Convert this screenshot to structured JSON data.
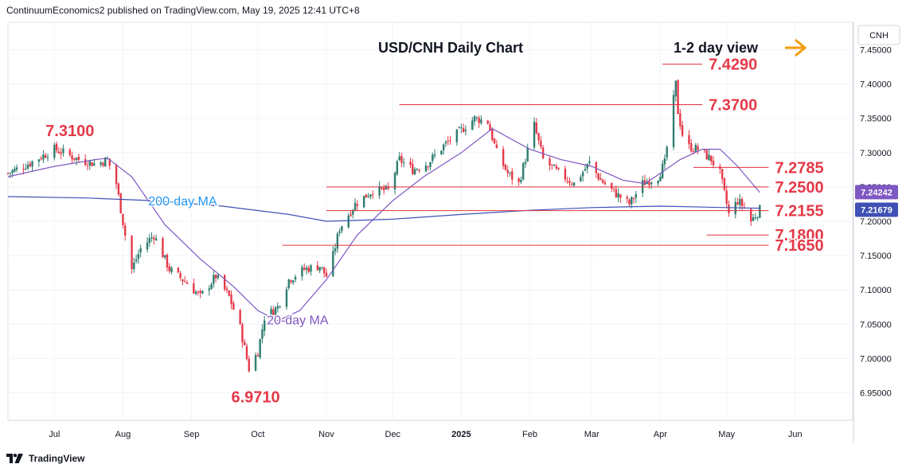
{
  "header": {
    "publisher_line": "ContinuumEconomics2 published on TradingView.com, May 19, 2025 12:41 UTC+8"
  },
  "footer": {
    "brand": "TradingView"
  },
  "chart_data": {
    "type": "candlestick",
    "title": "USD/CNH Daily Chart",
    "subtitle": "1-2 day view",
    "symbol_label": "CNH",
    "y_range": [
      6.91,
      7.49
    ],
    "y_ticks": [
      "7.45000",
      "7.40000",
      "7.35000",
      "7.30000",
      "7.25000",
      "7.20000",
      "7.15000",
      "7.10000",
      "7.05000",
      "7.00000",
      "6.95000"
    ],
    "x_ticks": [
      {
        "label": "Jul",
        "date": "2024-07-01"
      },
      {
        "label": "Aug",
        "date": "2024-08-01"
      },
      {
        "label": "Sep",
        "date": "2024-09-01"
      },
      {
        "label": "Oct",
        "date": "2024-10-01"
      },
      {
        "label": "Nov",
        "date": "2024-11-01"
      },
      {
        "label": "Dec",
        "date": "2024-12-01"
      },
      {
        "label": "2025",
        "date": "2025-01-01"
      },
      {
        "label": "Feb",
        "date": "2025-02-01"
      },
      {
        "label": "Mar",
        "date": "2025-03-01"
      },
      {
        "label": "Apr",
        "date": "2025-04-01"
      },
      {
        "label": "May",
        "date": "2025-05-01"
      },
      {
        "label": "Jun",
        "date": "2025-06-01"
      }
    ],
    "price_path": [
      [
        "2024-06-10",
        7.27
      ],
      [
        "2024-06-20",
        7.285
      ],
      [
        "2024-07-01",
        7.305
      ],
      [
        "2024-07-05",
        7.3
      ],
      [
        "2024-07-12",
        7.29
      ],
      [
        "2024-07-20",
        7.283
      ],
      [
        "2024-07-25",
        7.29
      ],
      [
        "2024-07-29",
        7.255
      ],
      [
        "2024-08-02",
        7.18
      ],
      [
        "2024-08-05",
        7.13
      ],
      [
        "2024-08-09",
        7.16
      ],
      [
        "2024-08-15",
        7.18
      ],
      [
        "2024-08-22",
        7.13
      ],
      [
        "2024-08-30",
        7.11
      ],
      [
        "2024-09-05",
        7.09
      ],
      [
        "2024-09-12",
        7.12
      ],
      [
        "2024-09-18",
        7.09
      ],
      [
        "2024-09-23",
        7.045
      ],
      [
        "2024-09-26",
        7.0
      ],
      [
        "2024-09-27",
        6.985
      ],
      [
        "2024-10-01",
        7.01
      ],
      [
        "2024-10-04",
        7.06
      ],
      [
        "2024-10-10",
        7.075
      ],
      [
        "2024-10-15",
        7.115
      ],
      [
        "2024-10-22",
        7.13
      ],
      [
        "2024-10-29",
        7.135
      ],
      [
        "2024-11-01",
        7.12
      ],
      [
        "2024-11-04",
        7.15
      ],
      [
        "2024-11-07",
        7.19
      ],
      [
        "2024-11-14",
        7.225
      ],
      [
        "2024-11-22",
        7.245
      ],
      [
        "2024-11-29",
        7.245
      ],
      [
        "2024-12-04",
        7.29
      ],
      [
        "2024-12-10",
        7.275
      ],
      [
        "2024-12-17",
        7.285
      ],
      [
        "2024-12-24",
        7.31
      ],
      [
        "2024-12-31",
        7.33
      ],
      [
        "2025-01-07",
        7.35
      ],
      [
        "2025-01-13",
        7.345
      ],
      [
        "2025-01-17",
        7.3
      ],
      [
        "2025-01-22",
        7.27
      ],
      [
        "2025-01-27",
        7.255
      ],
      [
        "2025-02-03",
        7.34
      ],
      [
        "2025-02-07",
        7.29
      ],
      [
        "2025-02-14",
        7.27
      ],
      [
        "2025-02-21",
        7.255
      ],
      [
        "2025-02-28",
        7.285
      ],
      [
        "2025-03-05",
        7.26
      ],
      [
        "2025-03-12",
        7.24
      ],
      [
        "2025-03-18",
        7.225
      ],
      [
        "2025-03-24",
        7.255
      ],
      [
        "2025-03-31",
        7.265
      ],
      [
        "2025-04-03",
        7.285
      ],
      [
        "2025-04-08",
        7.4
      ],
      [
        "2025-04-09",
        7.36
      ],
      [
        "2025-04-12",
        7.31
      ],
      [
        "2025-04-18",
        7.305
      ],
      [
        "2025-04-24",
        7.29
      ],
      [
        "2025-04-28",
        7.27
      ],
      [
        "2025-04-30",
        7.24
      ],
      [
        "2025-05-02",
        7.21
      ],
      [
        "2025-05-06",
        7.23
      ],
      [
        "2025-05-09",
        7.22
      ],
      [
        "2025-05-12",
        7.2
      ],
      [
        "2025-05-16",
        7.217
      ]
    ],
    "series": [
      {
        "name": "20-day MA",
        "color": "#7e57c2",
        "points": [
          [
            "2024-06-10",
            7.265
          ],
          [
            "2024-07-01",
            7.28
          ],
          [
            "2024-07-20",
            7.29
          ],
          [
            "2024-07-25",
            7.292
          ],
          [
            "2024-08-05",
            7.265
          ],
          [
            "2024-08-20",
            7.195
          ],
          [
            "2024-09-05",
            7.145
          ],
          [
            "2024-09-20",
            7.105
          ],
          [
            "2024-10-01",
            7.07
          ],
          [
            "2024-10-10",
            7.055
          ],
          [
            "2024-10-20",
            7.07
          ],
          [
            "2024-11-01",
            7.115
          ],
          [
            "2024-11-15",
            7.18
          ],
          [
            "2024-12-01",
            7.23
          ],
          [
            "2024-12-15",
            7.265
          ],
          [
            "2025-01-01",
            7.3
          ],
          [
            "2025-01-15",
            7.335
          ],
          [
            "2025-02-01",
            7.305
          ],
          [
            "2025-02-15",
            7.29
          ],
          [
            "2025-03-01",
            7.28
          ],
          [
            "2025-03-15",
            7.26
          ],
          [
            "2025-03-25",
            7.255
          ],
          [
            "2025-04-01",
            7.27
          ],
          [
            "2025-04-10",
            7.29
          ],
          [
            "2025-04-20",
            7.305
          ],
          [
            "2025-04-28",
            7.305
          ],
          [
            "2025-05-06",
            7.28
          ],
          [
            "2025-05-16",
            7.242
          ]
        ]
      },
      {
        "name": "200-day MA",
        "color": "#3f51b5",
        "points": [
          [
            "2024-06-10",
            7.236
          ],
          [
            "2024-07-15",
            7.234
          ],
          [
            "2024-08-15",
            7.23
          ],
          [
            "2024-09-15",
            7.222
          ],
          [
            "2024-10-15",
            7.21
          ],
          [
            "2024-11-01",
            7.2
          ],
          [
            "2024-12-01",
            7.203
          ],
          [
            "2025-01-01",
            7.21
          ],
          [
            "2025-02-01",
            7.216
          ],
          [
            "2025-03-01",
            7.22
          ],
          [
            "2025-04-01",
            7.222
          ],
          [
            "2025-05-01",
            7.22
          ],
          [
            "2025-05-16",
            7.219
          ]
        ]
      }
    ],
    "levels": [
      {
        "label": "7.4290",
        "value": 7.429,
        "from": "2025-04-02",
        "to": "2025-04-20"
      },
      {
        "label": "7.3700",
        "value": 7.37,
        "from": "2024-12-04",
        "to": "2025-04-20"
      },
      {
        "label": "7.2785",
        "value": 7.2785,
        "from": "2025-04-16",
        "to": "2025-05-20"
      },
      {
        "label": "7.2500",
        "value": 7.25,
        "from": "2024-11-01",
        "to": "2025-05-20"
      },
      {
        "label": "7.2155",
        "value": 7.2155,
        "from": "2024-11-01",
        "to": "2025-05-20"
      },
      {
        "label": "7.1800",
        "value": 7.18,
        "from": "2025-04-22",
        "to": "2025-05-20"
      },
      {
        "label": "7.1650",
        "value": 7.165,
        "from": "2024-10-12",
        "to": "2025-05-20"
      }
    ],
    "annotations": [
      {
        "text": "7.3100",
        "date": "2024-07-08",
        "value": 7.31
      },
      {
        "text": "6.9710",
        "date": "2024-09-30",
        "value": 6.971
      },
      {
        "text": "200-day MA",
        "date": "2024-08-28",
        "value": 7.223
      },
      {
        "text": "20-day MA",
        "date": "2024-10-19",
        "value": 7.05
      }
    ],
    "price_badges": [
      {
        "value": 7.24242,
        "label": "7.24242",
        "color": "#7e57c2"
      },
      {
        "value": 7.21679,
        "label": "7.21679",
        "color": "#3f51b5"
      }
    ],
    "colors": {
      "up": "#2e7d6f",
      "down": "#e53949",
      "levels": "#e0303d",
      "label_red": "#e53949",
      "arrow": "#f39c12",
      "ma_label_blue": "#2196f3"
    },
    "grid": true
  }
}
